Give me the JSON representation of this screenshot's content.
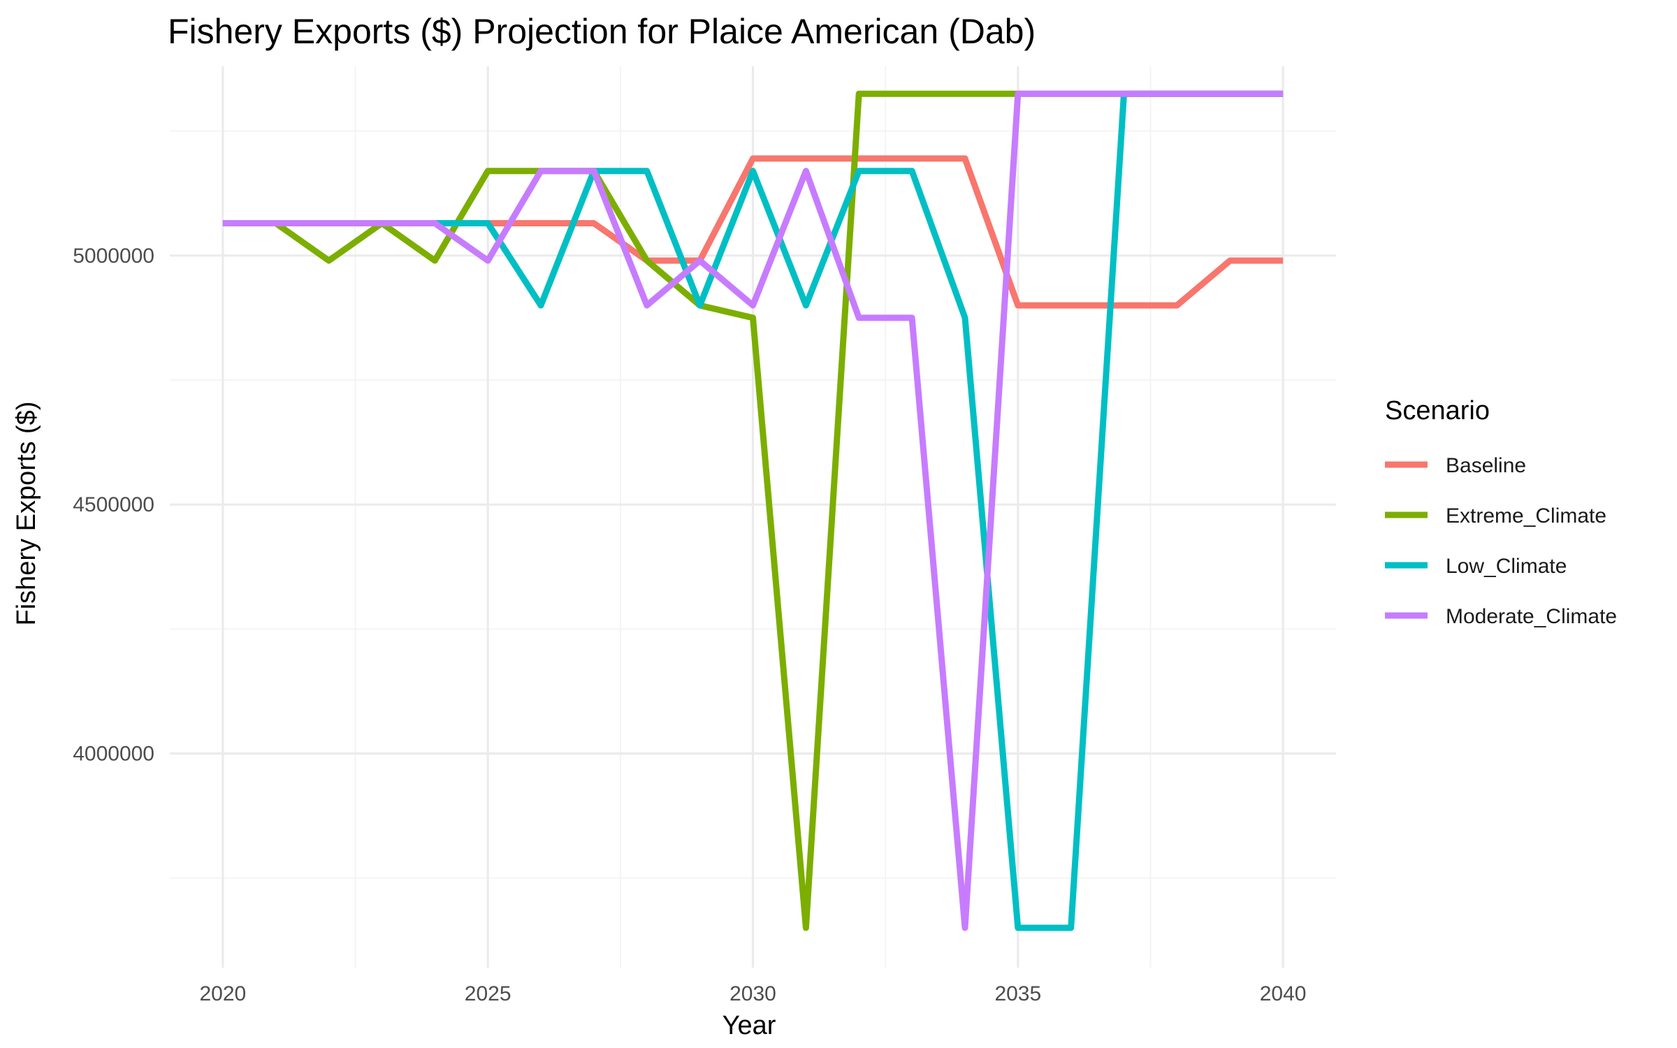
{
  "chart_data": {
    "type": "line",
    "title": "Fishery Exports ($) Projection for Plaice American (Dab)",
    "xlabel": "Year",
    "ylabel": "Fishery Exports ($)",
    "x": [
      2020,
      2021,
      2022,
      2023,
      2024,
      2025,
      2026,
      2027,
      2028,
      2029,
      2030,
      2031,
      2032,
      2033,
      2034,
      2035,
      2036,
      2037,
      2038,
      2039,
      2040
    ],
    "xlim": [
      2019.0,
      2041.0
    ],
    "ylim": [
      3570000,
      5380000
    ],
    "x_ticks": [
      2020,
      2025,
      2030,
      2035,
      2040
    ],
    "x_tick_labels": [
      "2020",
      "2025",
      "2030",
      "2035",
      "2040"
    ],
    "y_ticks": [
      4000000,
      4500000,
      5000000
    ],
    "y_tick_labels": [
      "4000000",
      "4500000",
      "5000000"
    ],
    "y_minor_ticks": [
      3750000,
      4250000,
      4750000,
      5250000
    ],
    "x_minor_ticks": [
      2022.5,
      2027.5,
      2032.5,
      2037.5
    ],
    "grid": true,
    "legend": {
      "title": "Scenario",
      "placement": "right"
    },
    "series": [
      {
        "name": "Baseline",
        "color": "#F8766D",
        "values": [
          5065000,
          5065000,
          5065000,
          5065000,
          5065000,
          5065000,
          5065000,
          5065000,
          4990000,
          4990000,
          5195000,
          5195000,
          5195000,
          5195000,
          5195000,
          4900000,
          4900000,
          4900000,
          4900000,
          4990000,
          4990000
        ]
      },
      {
        "name": "Extreme_Climate",
        "color": "#7CAE00",
        "values": [
          5065000,
          5065000,
          4990000,
          5065000,
          4990000,
          5170000,
          5170000,
          5170000,
          4990000,
          4900000,
          4875000,
          3650000,
          5325000,
          5325000,
          5325000,
          5325000,
          5325000,
          5325000,
          5325000,
          5325000,
          5325000
        ]
      },
      {
        "name": "Low_Climate",
        "color": "#00BFC4",
        "values": [
          5065000,
          5065000,
          5065000,
          5065000,
          5065000,
          5065000,
          4900000,
          5170000,
          5170000,
          4900000,
          5170000,
          4900000,
          5170000,
          5170000,
          4875000,
          3650000,
          3650000,
          5325000,
          5325000,
          5325000,
          5325000
        ]
      },
      {
        "name": "Moderate_Climate",
        "color": "#C77CFF",
        "values": [
          5065000,
          5065000,
          5065000,
          5065000,
          5065000,
          4990000,
          5170000,
          5170000,
          4900000,
          4990000,
          4900000,
          5170000,
          4875000,
          4875000,
          3650000,
          5325000,
          5325000,
          5325000,
          5325000,
          5325000,
          5325000
        ]
      }
    ]
  }
}
